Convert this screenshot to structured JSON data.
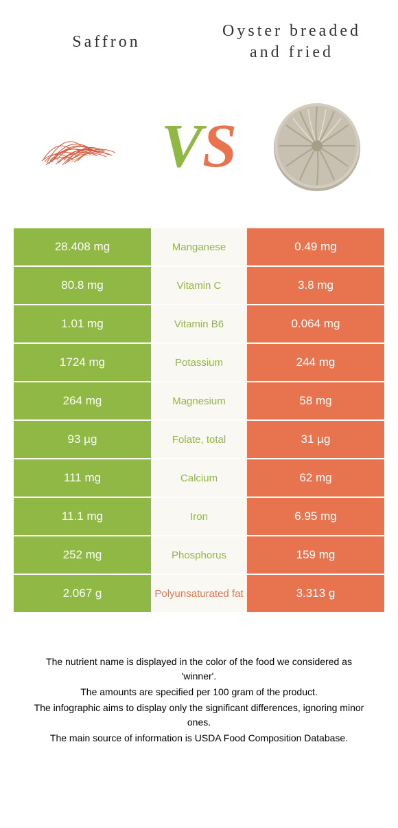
{
  "header": {
    "left_title": "Saffron",
    "right_title": "Oyster breaded and fried",
    "vs_v": "V",
    "vs_s": "S"
  },
  "colors": {
    "left": "#8fb844",
    "right": "#e8744f",
    "mid_bg": "#f9f8f3"
  },
  "rows": [
    {
      "left": "28.408 mg",
      "nutrient": "Manganese",
      "right": "0.49 mg",
      "winner": "left"
    },
    {
      "left": "80.8 mg",
      "nutrient": "Vitamin C",
      "right": "3.8 mg",
      "winner": "left"
    },
    {
      "left": "1.01 mg",
      "nutrient": "Vitamin B6",
      "right": "0.064 mg",
      "winner": "left"
    },
    {
      "left": "1724 mg",
      "nutrient": "Potassium",
      "right": "244 mg",
      "winner": "left"
    },
    {
      "left": "264 mg",
      "nutrient": "Magnesium",
      "right": "58 mg",
      "winner": "left"
    },
    {
      "left": "93 µg",
      "nutrient": "Folate, total",
      "right": "31 µg",
      "winner": "left"
    },
    {
      "left": "111 mg",
      "nutrient": "Calcium",
      "right": "62 mg",
      "winner": "left"
    },
    {
      "left": "11.1 mg",
      "nutrient": "Iron",
      "right": "6.95 mg",
      "winner": "left"
    },
    {
      "left": "252 mg",
      "nutrient": "Phosphorus",
      "right": "159 mg",
      "winner": "left"
    },
    {
      "left": "2.067 g",
      "nutrient": "Polyunsaturated fat",
      "right": "3.313 g",
      "winner": "right"
    }
  ],
  "footer": {
    "line1": "The nutrient name is displayed in the color of the food we considered as 'winner'.",
    "line2": "The amounts are specified per 100 gram of the product.",
    "line3": "The infographic aims to display only the significant differences, ignoring minor ones.",
    "line4": "The main source of information is USDA Food Composition Database."
  }
}
